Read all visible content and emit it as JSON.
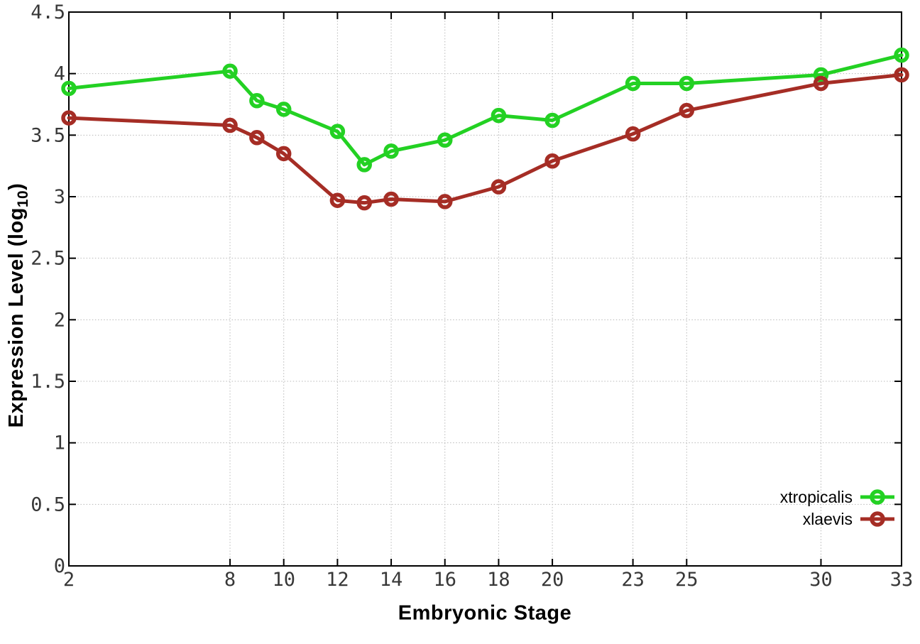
{
  "chart_data": {
    "type": "line",
    "xlabel": "Embryonic Stage",
    "ylabel": "Expression Level (log10)",
    "ylabel_parts": {
      "main": "Expression Level (log",
      "sub": "10",
      "close": ")"
    },
    "xlim": [
      2,
      33
    ],
    "ylim": [
      0,
      4.5
    ],
    "x_ticks": [
      2,
      8,
      10,
      12,
      14,
      16,
      18,
      20,
      23,
      25,
      30,
      33
    ],
    "y_ticks": [
      0,
      0.5,
      1,
      1.5,
      2,
      2.5,
      3,
      3.5,
      4,
      4.5
    ],
    "y_tick_labels": [
      "0",
      "0.5",
      "1",
      "1.5",
      "2",
      "2.5",
      "3",
      "3.5",
      "4",
      "4.5"
    ],
    "grid": "dotted",
    "legend_position": "bottom-right",
    "marker": "open-circle",
    "x": [
      2,
      8,
      9,
      10,
      12,
      13,
      14,
      16,
      18,
      20,
      23,
      25,
      30,
      33
    ],
    "series": [
      {
        "name": "xtropicalis",
        "color": "#23d123",
        "values": [
          3.88,
          4.02,
          3.78,
          3.71,
          3.53,
          3.26,
          3.37,
          3.46,
          3.66,
          3.62,
          3.92,
          3.92,
          3.99,
          4.15
        ]
      },
      {
        "name": "xlaevis",
        "color": "#a52d25",
        "values": [
          3.64,
          3.58,
          3.48,
          3.35,
          2.97,
          2.95,
          2.98,
          2.96,
          3.08,
          3.29,
          3.51,
          3.7,
          3.92,
          3.99
        ]
      }
    ],
    "style": {
      "axis_color": "#000000",
      "grid_color": "#b8b8b8",
      "tick_label_color": "#383838",
      "background": "#ffffff"
    }
  }
}
